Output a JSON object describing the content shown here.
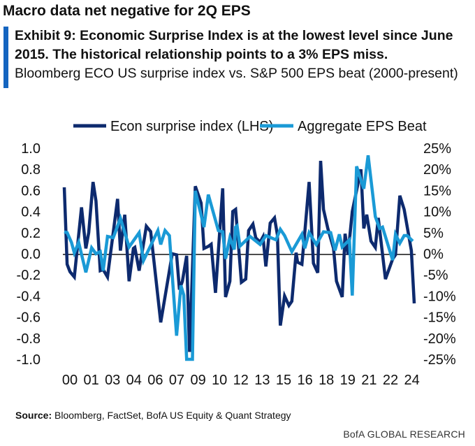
{
  "header": {
    "title": "Macro data net negative for 2Q EPS",
    "exhibit": "Exhibit 9: Economic Surprise Index is at the lowest level since June 2015. The historical relationship points to a 3% EPS miss.",
    "subtitle": "Bloomberg ECO US surprise index vs. S&P 500 EPS beat (2000-present)"
  },
  "footer": {
    "source_label": "Source:",
    "source_text": " Bloomberg, FactSet, BofA US Equity & Quant Strategy",
    "brand": "BofA GLOBAL RESEARCH"
  },
  "colors": {
    "econ": "#0d2a6e",
    "eps": "#1a9ad6",
    "accent": "#1565c0"
  },
  "chart_data": {
    "type": "line",
    "title": "Bloomberg ECO US surprise index vs. S&P 500 EPS beat (2000-present)",
    "legend": [
      "Econ surprise index (LHS)",
      "Aggregate EPS Beat"
    ],
    "legend_placement": "top",
    "x_tick_labels": [
      "00",
      "01",
      "03",
      "04",
      "06",
      "07",
      "09",
      "10",
      "12",
      "13",
      "15",
      "16",
      "18",
      "19",
      "21",
      "22",
      "24"
    ],
    "y_left_ticks": [
      "1.0",
      "0.8",
      "0.6",
      "0.4",
      "0.2",
      "0.0",
      "-0.2",
      "-0.4",
      "-0.6",
      "-0.8",
      "-1.0"
    ],
    "y_right_ticks": [
      "25%",
      "20%",
      "15%",
      "10%",
      "5%",
      "0%",
      "-5%",
      "-10%",
      "-15%",
      "-20%",
      "-25%"
    ],
    "xlim": [
      2000,
      2024.3
    ],
    "ylim_left": [
      -1.0,
      1.0
    ],
    "ylim_right": [
      -25,
      25
    ],
    "series": [
      {
        "name": "Econ surprise index (LHS)",
        "axis": "left",
        "points": [
          [
            2000.0,
            0.63
          ],
          [
            2000.2,
            -0.1
          ],
          [
            2000.4,
            -0.17
          ],
          [
            2000.7,
            -0.22
          ],
          [
            2001.2,
            0.44
          ],
          [
            2001.5,
            0.05
          ],
          [
            2001.7,
            0.2
          ],
          [
            2002.0,
            0.68
          ],
          [
            2002.2,
            0.5
          ],
          [
            2002.5,
            -0.16
          ],
          [
            2002.7,
            -0.15
          ],
          [
            2003.0,
            -0.22
          ],
          [
            2003.7,
            0.52
          ],
          [
            2003.9,
            0.03
          ],
          [
            2004.2,
            0.37
          ],
          [
            2004.5,
            -0.26
          ],
          [
            2004.8,
            0.05
          ],
          [
            2004.9,
            0.06
          ],
          [
            2005.2,
            -0.16
          ],
          [
            2005.7,
            0.26
          ],
          [
            2006.0,
            0.21
          ],
          [
            2006.7,
            -0.65
          ],
          [
            2007.5,
            0
          ],
          [
            2007.8,
            -0.01
          ],
          [
            2008.0,
            -0.34
          ],
          [
            2008.2,
            -0.26
          ],
          [
            2008.5,
            -0.02
          ],
          [
            2008.7,
            -0.93
          ],
          [
            2009.1,
            0.64
          ],
          [
            2009.5,
            0.48
          ],
          [
            2009.7,
            0.05
          ],
          [
            2010.0,
            0.07
          ],
          [
            2010.2,
            0.09
          ],
          [
            2010.5,
            -0.37
          ],
          [
            2011.0,
            0.62
          ],
          [
            2011.2,
            -0.41
          ],
          [
            2011.5,
            -0.26
          ],
          [
            2011.7,
            0.4
          ],
          [
            2011.9,
            0.42
          ],
          [
            2012.3,
            -0.27
          ],
          [
            2012.6,
            -0.24
          ],
          [
            2012.8,
            0.22
          ],
          [
            2013.1,
            0.28
          ],
          [
            2013.3,
            0.15
          ],
          [
            2013.6,
            0.11
          ],
          [
            2013.8,
            0.16
          ],
          [
            2014.0,
            -0.12
          ],
          [
            2014.3,
            0.29
          ],
          [
            2014.6,
            0.34
          ],
          [
            2014.8,
            0.18
          ],
          [
            2015.0,
            -0.68
          ],
          [
            2015.3,
            -0.4
          ],
          [
            2015.6,
            -0.49
          ],
          [
            2015.8,
            -0.45
          ],
          [
            2016.1,
            0.01
          ],
          [
            2016.2,
            -0.08
          ],
          [
            2016.5,
            -0.1
          ],
          [
            2016.7,
            0.2
          ],
          [
            2017.0,
            0.68
          ],
          [
            2017.3,
            -0.09
          ],
          [
            2017.6,
            -0.18
          ],
          [
            2017.8,
            0.88
          ],
          [
            2018.0,
            0.42
          ],
          [
            2018.3,
            0.24
          ],
          [
            2018.7,
            0.05
          ],
          [
            2018.9,
            -0.26
          ],
          [
            2019.3,
            -0.41
          ],
          [
            2019.5,
            0.19
          ],
          [
            2019.7,
            -0.01
          ],
          [
            2020.0,
            0.4
          ],
          [
            2020.6,
            0.8
          ],
          [
            2020.8,
            0.24
          ],
          [
            2021.0,
            0.37
          ],
          [
            2021.3,
            0.12
          ],
          [
            2021.6,
            0.06
          ],
          [
            2021.8,
            0.34
          ],
          [
            2022.3,
            -0.24
          ],
          [
            2022.8,
            -0.05
          ],
          [
            2023.0,
            -0.01
          ],
          [
            2023.3,
            0.55
          ],
          [
            2023.6,
            0.42
          ],
          [
            2024.1,
            0.03
          ],
          [
            2024.3,
            -0.47
          ]
        ]
      },
      {
        "name": "Aggregate EPS Beat",
        "axis": "right",
        "points": [
          [
            2000.0,
            5.2
          ],
          [
            2000.2,
            5
          ],
          [
            2000.5,
            2.7
          ],
          [
            2000.7,
            0.2
          ],
          [
            2001.0,
            2.7
          ],
          [
            2001.5,
            -4.4
          ],
          [
            2001.9,
            1.4
          ],
          [
            2002.2,
            0
          ],
          [
            2002.5,
            0.5
          ],
          [
            2002.7,
            -4
          ],
          [
            2003.0,
            4.1
          ],
          [
            2003.4,
            3.8
          ],
          [
            2003.9,
            8.4
          ],
          [
            2004.5,
            1.6
          ],
          [
            2005.2,
            5
          ],
          [
            2005.5,
            -1.6
          ],
          [
            2006.5,
            5.5
          ],
          [
            2006.7,
            2.2
          ],
          [
            2007.0,
            5.5
          ],
          [
            2007.3,
            4.3
          ],
          [
            2007.8,
            -19.4
          ],
          [
            2008.1,
            -7.5
          ],
          [
            2008.3,
            -9.8
          ],
          [
            2008.5,
            -25
          ],
          [
            2008.9,
            -25
          ],
          [
            2009.1,
            14.9
          ],
          [
            2009.7,
            6.3
          ],
          [
            2010.0,
            14
          ],
          [
            2010.7,
            5.5
          ],
          [
            2011.0,
            5.2
          ],
          [
            2011.2,
            -1.2
          ],
          [
            2011.5,
            3.8
          ],
          [
            2011.8,
            1
          ],
          [
            2011.9,
            6.3
          ],
          [
            2012.0,
            6.6
          ],
          [
            2012.2,
            1.8
          ],
          [
            2012.9,
            4.1
          ],
          [
            2013.6,
            2.2
          ],
          [
            2014.0,
            4.3
          ],
          [
            2014.7,
            3.3
          ],
          [
            2015.0,
            5.8
          ],
          [
            2015.3,
            4.3
          ],
          [
            2015.8,
            0.5
          ],
          [
            2016.5,
            4.6
          ],
          [
            2016.7,
            1.3
          ],
          [
            2017.0,
            5
          ],
          [
            2017.5,
            2.2
          ],
          [
            2018.0,
            5.2
          ],
          [
            2018.5,
            5
          ],
          [
            2018.8,
            0.8
          ],
          [
            2019.1,
            4.6
          ],
          [
            2019.3,
            1.6
          ],
          [
            2019.8,
            3.3
          ],
          [
            2020.0,
            -9.9
          ],
          [
            2020.3,
            20.7
          ],
          [
            2020.8,
            15.4
          ],
          [
            2021.1,
            23.3
          ],
          [
            2021.6,
            8.8
          ],
          [
            2021.9,
            6
          ],
          [
            2022.1,
            6.3
          ],
          [
            2022.8,
            -1.5
          ],
          [
            2023.0,
            4.6
          ],
          [
            2023.3,
            2.5
          ],
          [
            2023.6,
            4.3
          ],
          [
            2023.8,
            4.3
          ],
          [
            2024.2,
            3
          ]
        ]
      }
    ]
  }
}
